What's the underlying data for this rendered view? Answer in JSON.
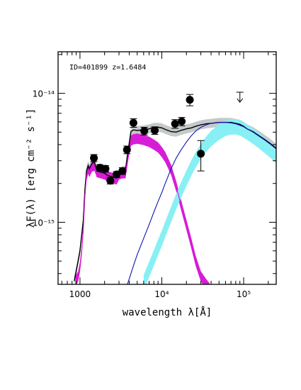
{
  "chart_data": {
    "type": "scatter",
    "annotation": "ID=401899 z=1.6484",
    "xlabel": "wavelength λ[Å]",
    "ylabel": "λF(λ) [erg cm⁻² s⁻¹]",
    "xscale": "log",
    "yscale": "log",
    "xlim": [
      540,
      250000
    ],
    "ylim": [
      3.3e-16,
      2.1e-14
    ],
    "x_ticks": [
      {
        "value": 1000,
        "label": "1000"
      },
      {
        "value": 10000,
        "label": "10⁴"
      },
      {
        "value": 100000,
        "label": "10⁵"
      }
    ],
    "y_ticks": [
      {
        "value": 1e-15,
        "label": "10⁻¹⁵"
      },
      {
        "value": 1e-14,
        "label": "10⁻¹⁴"
      }
    ],
    "observed_points": [
      {
        "x": 1480,
        "y": 3.15e-15,
        "err": 2e-16
      },
      {
        "x": 1750,
        "y": 2.65e-15,
        "err": 1.5e-16
      },
      {
        "x": 2050,
        "y": 2.6e-15,
        "err": 1.5e-16
      },
      {
        "x": 2350,
        "y": 2.1e-15,
        "err": 1.2e-16
      },
      {
        "x": 2800,
        "y": 2.35e-15,
        "err": 1.2e-16
      },
      {
        "x": 3300,
        "y": 2.5e-15,
        "err": 1.5e-16
      },
      {
        "x": 3750,
        "y": 3.65e-15,
        "err": 2.5e-16
      },
      {
        "x": 4500,
        "y": 5.9e-15,
        "err": 4.5e-16
      },
      {
        "x": 6100,
        "y": 5.1e-15,
        "err": 3.5e-16
      },
      {
        "x": 8200,
        "y": 5.15e-15,
        "err": 3.5e-16
      },
      {
        "x": 14500,
        "y": 5.8e-15,
        "err": 4.5e-16
      },
      {
        "x": 17500,
        "y": 6.05e-15,
        "err": 4.5e-16
      },
      {
        "x": 22000,
        "y": 8.9e-15,
        "err": 9e-16
      },
      {
        "x": 30000,
        "y": 3.4e-15,
        "err": 9e-16
      }
    ],
    "upper_limits": [
      {
        "x": 90000,
        "y": 1.02e-14
      }
    ],
    "series": [
      {
        "kind": "total-model",
        "color": "#000000",
        "band_color": "#c4c9c9",
        "x": [
          850,
          900,
          950,
          1000,
          1050,
          1100,
          1150,
          1200,
          1260,
          1300,
          1400,
          1500,
          1600,
          1800,
          2000,
          2200,
          2500,
          2800,
          3000,
          3300,
          3600,
          3800,
          4000,
          4200,
          4500,
          5000,
          6000,
          7000,
          8000,
          9000,
          10000,
          11000,
          13000,
          15000,
          17000,
          20000,
          23000,
          26000,
          30000,
          35000,
          40000,
          50000,
          60000,
          70000,
          80000,
          90000,
          100000,
          110000,
          130000,
          150000,
          180000,
          210000,
          250000
        ],
        "y": [
          3.5e-16,
          4.2e-16,
          5e-16,
          6e-16,
          8e-16,
          1.05e-15,
          1.8e-15,
          2.5e-15,
          2.75e-15,
          2.6e-15,
          2.85e-15,
          2.95e-15,
          2.5e-15,
          2.45e-15,
          2.4e-15,
          2.3e-15,
          2.25e-15,
          2.2e-15,
          2.4e-15,
          2.5e-15,
          2.55e-15,
          3.3e-15,
          4.1e-15,
          5.05e-15,
          5.2e-15,
          5.15e-15,
          5.2e-15,
          5.3e-15,
          5.45e-15,
          5.45e-15,
          5.4e-15,
          5.25e-15,
          5.05e-15,
          5e-15,
          5.15e-15,
          5.3e-15,
          5.4e-15,
          5.55e-15,
          5.7e-15,
          5.8e-15,
          5.85e-15,
          5.95e-15,
          5.95e-15,
          5.95e-15,
          5.85e-15,
          5.75e-15,
          5.55e-15,
          5.3e-15,
          5.05e-15,
          4.75e-15,
          4.4e-15,
          4.1e-15,
          3.75e-15
        ],
        "band_half_width_dex": 0.035
      },
      {
        "kind": "stellar-component",
        "color": "#d21ad2",
        "band_color": "#d81ed8",
        "x": [
          880,
          950,
          1000,
          1050,
          1100,
          1150,
          1200,
          1260,
          1300,
          1400,
          1500,
          1600,
          1800,
          2000,
          2200,
          2500,
          2800,
          3000,
          3300,
          3600,
          3800,
          4000,
          4200,
          4500,
          5000,
          6000,
          7000,
          8000,
          9000,
          10000,
          11000,
          13000,
          15000,
          17000,
          20000,
          23000,
          26000,
          30000,
          35000,
          38000
        ],
        "y": [
          3.5e-16,
          3.8e-16,
          4.5e-16,
          6e-16,
          9e-16,
          1.6e-15,
          2.3e-15,
          2.6e-15,
          2.45e-15,
          2.7e-15,
          2.75e-15,
          2.45e-15,
          2.4e-15,
          2.35e-15,
          2.25e-15,
          2.2e-15,
          2.15e-15,
          2.35e-15,
          2.4e-15,
          2.4e-15,
          3e-15,
          3.7e-15,
          4.3e-15,
          4.4e-15,
          4.45e-15,
          4.35e-15,
          4.2e-15,
          4e-15,
          3.8e-15,
          3.5e-15,
          3.2e-15,
          2.55e-15,
          1.9e-15,
          1.4e-15,
          9.5e-16,
          6.8e-16,
          5e-16,
          3.8e-16,
          3.3e-16,
          3.1e-16
        ],
        "band_half_width_dex": 0.04
      },
      {
        "kind": "agn-component",
        "color": "#1414b4",
        "x": [
          3800,
          4200,
          4500,
          5000,
          6000,
          7000,
          8000,
          9000,
          10000,
          11000,
          13000,
          15000,
          17000,
          20000,
          23000,
          26000,
          30000,
          35000,
          40000,
          50000,
          60000,
          70000,
          80000,
          90000,
          100000,
          110000,
          130000,
          150000,
          180000,
          210000,
          250000
        ],
        "y": [
          3.3e-16,
          4e-16,
          4.6e-16,
          5.6e-16,
          7.5e-16,
          9.6e-16,
          1.2e-15,
          1.45e-15,
          1.7e-15,
          2e-15,
          2.6e-15,
          3.15e-15,
          3.6e-15,
          4.2e-15,
          4.7e-15,
          5.1e-15,
          5.45e-15,
          5.7e-15,
          5.85e-15,
          5.95e-15,
          5.95e-15,
          5.9e-15,
          5.8e-15,
          5.65e-15,
          5.5e-15,
          5.3e-15,
          5e-15,
          4.7e-15,
          4.35e-15,
          4.05e-15,
          3.7e-15
        ]
      },
      {
        "kind": "agn-band",
        "band_color": "#88f0f4",
        "x": [
          6000,
          7000,
          8000,
          9000,
          10000,
          11000,
          13000,
          15000,
          17000,
          20000,
          23000,
          26000,
          30000,
          35000,
          40000,
          50000,
          60000,
          70000,
          80000,
          90000,
          100000,
          110000,
          130000,
          150000,
          180000,
          210000,
          250000
        ],
        "y": [
          3.4e-16,
          4.3e-16,
          5.3e-16,
          6.4e-16,
          7.5e-16,
          8.8e-16,
          1.15e-15,
          1.45e-15,
          1.75e-15,
          2.2e-15,
          2.65e-15,
          3.05e-15,
          3.55e-15,
          4.05e-15,
          4.45e-15,
          5e-15,
          5.35e-15,
          5.5e-15,
          5.5e-15,
          5.4e-15,
          5.2e-15,
          5e-15,
          4.65e-15,
          4.35e-15,
          3.95e-15,
          3.65e-15,
          3.3e-15
        ],
        "band_half_width_dex": 0.06
      }
    ]
  }
}
